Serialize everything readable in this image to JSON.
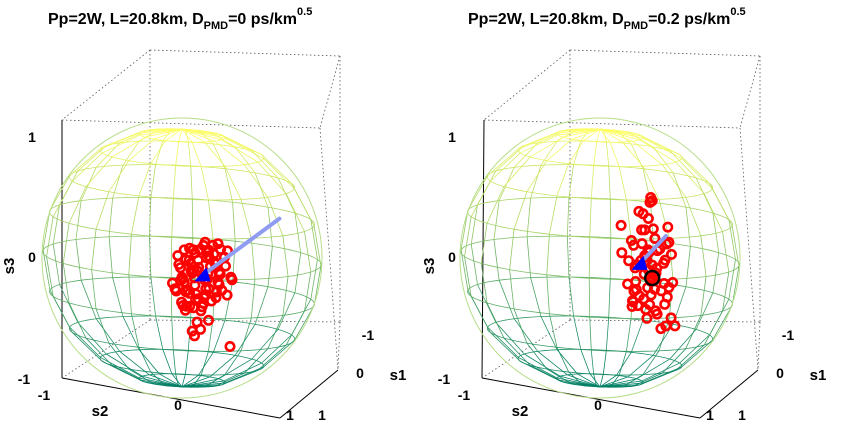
{
  "chart_data": [
    {
      "type": "scatter3d",
      "title": {
        "main": "Pp=2W, L=20.8km, D",
        "sub": "PMD",
        "mid": "=0 ps/km",
        "sup": "0.5"
      },
      "xlabel": "s1",
      "ylabel": "s2",
      "zlabel": "s3",
      "xticks": [
        "-1",
        "0",
        "1"
      ],
      "yticks": [
        "-1",
        "0",
        "1"
      ],
      "zticks": [
        "1",
        "0",
        "-1"
      ],
      "xlim": [
        -1,
        1
      ],
      "ylim": [
        -1,
        1
      ],
      "zlim": [
        -1,
        1
      ],
      "sphere": {
        "meridians": 20,
        "parallels": 10,
        "colormap": "summer"
      },
      "grid": true,
      "arrow": {
        "tail": [
          -0.5,
          0.55,
          0.3
        ],
        "head": [
          0.1,
          0.2,
          -0.1
        ],
        "color": "#8f9cf2"
      },
      "center_marker": {
        "point": [
          0.1,
          0.2,
          -0.1
        ],
        "color": "#0000ff",
        "shape": "triangle"
      },
      "series": [
        {
          "color": "#ff0000",
          "marker": "ring",
          "points": [
            [
              -0.05,
              0.2,
              -0.05
            ],
            [
              0.2,
              0.2,
              -0.05
            ],
            [
              0.15,
              0.05,
              -0.05
            ],
            [
              0.05,
              0.3,
              -0.15
            ],
            [
              -0.1,
              0.15,
              0.05
            ],
            [
              0.25,
              0.3,
              -0.1
            ],
            [
              0.15,
              0.35,
              -0.15
            ],
            [
              0.3,
              0.15,
              -0.2
            ],
            [
              0.0,
              0.1,
              -0.2
            ],
            [
              0.15,
              0.15,
              0.1
            ],
            [
              0.05,
              0.35,
              0.05
            ],
            [
              -0.05,
              0.05,
              -0.1
            ],
            [
              0.1,
              0.25,
              -0.2
            ],
            [
              0.3,
              0.25,
              0.05
            ],
            [
              0.1,
              0.1,
              -0.25
            ],
            [
              0.05,
              0.05,
              0.0
            ],
            [
              0.2,
              0.1,
              -0.15
            ],
            [
              0.3,
              0.1,
              0.0
            ],
            [
              0.25,
              0.35,
              0.1
            ],
            [
              0.1,
              0.05,
              -0.35
            ],
            [
              -0.05,
              0.15,
              -0.3
            ],
            [
              0.0,
              0.3,
              0.1
            ],
            [
              0.15,
              0.15,
              -0.35
            ],
            [
              0.2,
              0.05,
              0.05
            ],
            [
              0.05,
              0.2,
              0.15
            ],
            [
              0.3,
              0.35,
              -0.05
            ],
            [
              0.15,
              0.3,
              0.15
            ],
            [
              -0.1,
              0.05,
              -0.1
            ],
            [
              0.4,
              0.35,
              -0.15
            ],
            [
              0.35,
              0.15,
              -0.1
            ],
            [
              0.25,
              0.1,
              -0.3
            ],
            [
              0.0,
              0.35,
              -0.25
            ],
            [
              0.2,
              0.25,
              0.15
            ],
            [
              0.1,
              0.1,
              0.1
            ],
            [
              0.25,
              0.2,
              -0.1
            ],
            [
              0.05,
              0.15,
              -0.05
            ],
            [
              0.15,
              0.35,
              -0.05
            ],
            [
              0.0,
              0.25,
              0.0
            ],
            [
              0.3,
              0.25,
              -0.25
            ],
            [
              0.2,
              0.15,
              0.0
            ],
            [
              0.45,
              0.45,
              -0.2
            ],
            [
              0.1,
              0.3,
              0.0
            ],
            [
              0.0,
              0.0,
              -0.15
            ],
            [
              0.35,
              0.3,
              -0.3
            ],
            [
              0.05,
              0.1,
              -0.1
            ],
            [
              0.1,
              0.25,
              0.1
            ],
            [
              0.25,
              0.05,
              -0.2
            ],
            [
              0.15,
              0.05,
              -0.15
            ],
            [
              0.2,
              0.35,
              -0.2
            ],
            [
              0.35,
              0.2,
              0.05
            ],
            [
              0.05,
              0.4,
              -0.1
            ],
            [
              0.3,
              0.05,
              -0.15
            ],
            [
              0.2,
              0.25,
              -0.3
            ],
            [
              0.15,
              0.25,
              0.05
            ],
            [
              0.1,
              0.15,
              -0.25
            ],
            [
              0.25,
              0.4,
              -0.05
            ],
            [
              0.05,
              0.25,
              -0.3
            ],
            [
              0.2,
              0.1,
              0.1
            ],
            [
              0.0,
              0.2,
              -0.1
            ],
            [
              0.3,
              0.3,
              -0.1
            ],
            [
              0.1,
              0.1,
              -0.35
            ],
            [
              0.25,
              0.15,
              -0.2
            ],
            [
              0.15,
              0.4,
              0.0
            ],
            [
              0.05,
              0.05,
              -0.25
            ],
            [
              0.35,
              0.25,
              -0.25
            ],
            [
              0.1,
              0.35,
              -0.2
            ],
            [
              0.2,
              0.3,
              0.05
            ],
            [
              0.0,
              0.1,
              0.05
            ],
            [
              0.15,
              0.45,
              -0.1
            ],
            [
              0.25,
              0.25,
              -0.35
            ],
            [
              0.3,
              0.15,
              -0.35
            ],
            [
              0.2,
              0.2,
              -0.45
            ],
            [
              0.35,
              0.1,
              -0.2
            ],
            [
              0.4,
              0.2,
              -0.3
            ],
            [
              0.05,
              0.3,
              0.15
            ],
            [
              -0.2,
              0.1,
              -0.3
            ],
            [
              -0.25,
              0.25,
              0.05
            ],
            [
              0.35,
              0.35,
              -0.4
            ],
            [
              0.5,
              0.35,
              -0.45
            ],
            [
              0.25,
              0.2,
              -0.55
            ],
            [
              0.55,
              0.6,
              -0.55
            ],
            [
              0.05,
              0.1,
              -0.55
            ],
            [
              -0.5,
              0.0,
              -0.05
            ],
            [
              -0.45,
              -0.05,
              0.0
            ]
          ]
        }
      ]
    },
    {
      "type": "scatter3d",
      "title": {
        "main": "Pp=2W, L=20.8km, D",
        "sub": "PMD",
        "mid": "=0.2 ps/km",
        "sup": "0.5"
      },
      "xlabel": "s1",
      "ylabel": "s2",
      "zlabel": "s3",
      "xticks": [
        "-1",
        "0",
        "1"
      ],
      "yticks": [
        "-1",
        "0",
        "1"
      ],
      "zticks": [
        "1",
        "0",
        "-1"
      ],
      "xlim": [
        -1,
        1
      ],
      "ylim": [
        -1,
        1
      ],
      "zlim": [
        -1,
        1
      ],
      "sphere": {
        "meridians": 20,
        "parallels": 10,
        "colormap": "summer"
      },
      "grid": true,
      "arrow": {
        "tail": [
          -0.15,
          0.45,
          0.2
        ],
        "head": [
          -0.5,
          0.1,
          -0.1
        ],
        "color": "#8f9cf2"
      },
      "center_marker": {
        "point": [
          -0.5,
          0.1,
          -0.1
        ],
        "color": "#0000ff",
        "shape": "triangle"
      },
      "mean_marker": {
        "point": [
          0.35,
          0.55,
          -0.05
        ],
        "color": "#000000",
        "shape": "ring"
      },
      "series": [
        {
          "color": "#ff0000",
          "marker": "ring",
          "points": [
            [
              0.35,
              0.55,
              0.05
            ],
            [
              0.45,
              0.55,
              0.1
            ],
            [
              0.3,
              0.5,
              0.0
            ],
            [
              0.5,
              0.6,
              -0.05
            ],
            [
              0.25,
              0.45,
              0.1
            ],
            [
              0.4,
              0.7,
              -0.1
            ],
            [
              0.55,
              0.5,
              0.05
            ],
            [
              0.3,
              0.6,
              -0.15
            ],
            [
              0.2,
              0.5,
              -0.05
            ],
            [
              0.5,
              0.7,
              0.1
            ],
            [
              0.35,
              0.45,
              -0.2
            ],
            [
              0.45,
              0.45,
              -0.15
            ],
            [
              0.6,
              0.65,
              0.0
            ],
            [
              0.25,
              0.55,
              0.15
            ],
            [
              0.4,
              0.55,
              -0.25
            ],
            [
              0.55,
              0.75,
              -0.15
            ],
            [
              0.3,
              0.4,
              -0.1
            ],
            [
              0.45,
              0.65,
              0.2
            ],
            [
              0.65,
              0.55,
              -0.1
            ],
            [
              0.35,
              0.65,
              0.1
            ],
            [
              0.2,
              0.4,
              0.05
            ],
            [
              0.5,
              0.5,
              -0.25
            ],
            [
              0.6,
              0.75,
              -0.2
            ],
            [
              0.4,
              0.45,
              0.05
            ],
            [
              0.25,
              0.6,
              -0.1
            ],
            [
              0.55,
              0.6,
              0.2
            ],
            [
              0.45,
              0.75,
              -0.05
            ],
            [
              0.35,
              0.5,
              -0.3
            ],
            [
              0.7,
              0.6,
              0.1
            ],
            [
              0.3,
              0.45,
              0.2
            ],
            [
              0.5,
              0.55,
              0.0
            ],
            [
              0.4,
              0.6,
              0.0
            ],
            [
              0.6,
              0.5,
              -0.2
            ],
            [
              0.45,
              0.4,
              -0.1
            ],
            [
              0.25,
              0.5,
              -0.2
            ],
            [
              0.65,
              0.7,
              -0.25
            ],
            [
              0.55,
              0.45,
              0.1
            ],
            [
              0.35,
              0.7,
              0.15
            ],
            [
              0.5,
              0.65,
              -0.3
            ],
            [
              0.3,
              0.55,
              0.25
            ],
            [
              0.7,
              0.7,
              0.0
            ],
            [
              0.45,
              0.55,
              -0.35
            ],
            [
              0.6,
              0.6,
              0.15
            ],
            [
              0.25,
              0.45,
              0.3
            ],
            [
              0.75,
              0.65,
              -0.15
            ],
            [
              0.4,
              0.7,
              0.25
            ],
            [
              0.55,
              0.65,
              -0.1
            ],
            [
              0.35,
              0.4,
              -0.25
            ],
            [
              0.5,
              0.45,
              0.25
            ],
            [
              0.3,
              0.65,
              0.35
            ],
            [
              0.2,
              0.6,
              0.2
            ],
            [
              0.65,
              0.65,
              0.2
            ],
            [
              0.45,
              0.6,
              0.35
            ],
            [
              0.75,
              0.75,
              0.1
            ],
            [
              0.3,
              0.5,
              0.4
            ],
            [
              0.55,
              0.55,
              0.35
            ],
            [
              0.4,
              0.5,
              0.45
            ],
            [
              0.6,
              0.8,
              -0.3
            ],
            [
              0.8,
              0.7,
              -0.05
            ],
            [
              0.45,
              0.35,
              0.35
            ],
            [
              0.15,
              0.45,
              0.5
            ],
            [
              0.35,
              0.55,
              0.55
            ],
            [
              0.6,
              0.55,
              0.5
            ],
            [
              0.5,
              0.6,
              0.6
            ],
            [
              0.7,
              0.55,
              0.25
            ],
            [
              0.8,
              0.5,
              0.2
            ],
            [
              0.85,
              0.6,
              -0.2
            ],
            [
              0.7,
              0.8,
              -0.35
            ],
            [
              0.55,
              0.7,
              -0.4
            ],
            [
              0.65,
              0.85,
              -0.35
            ]
          ]
        }
      ]
    }
  ]
}
